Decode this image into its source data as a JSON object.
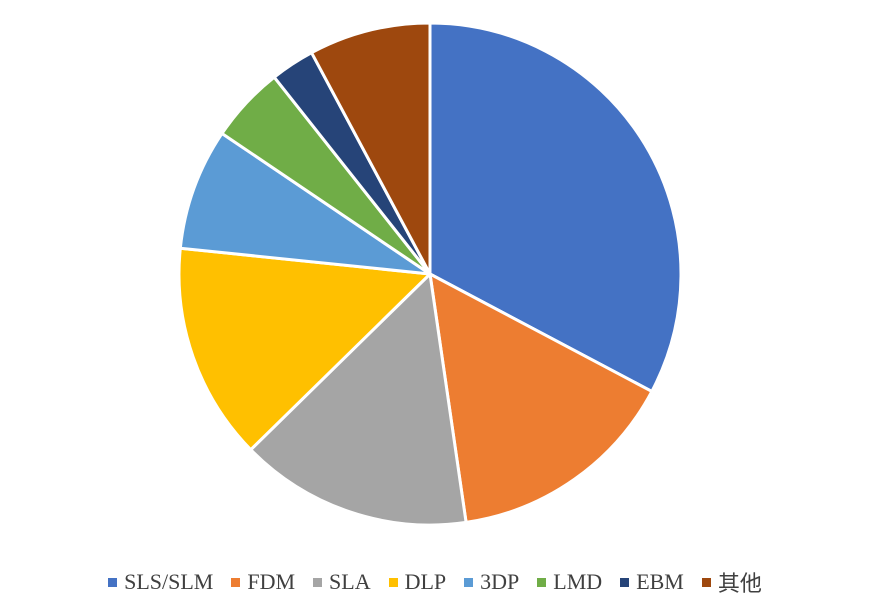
{
  "chart_data": {
    "type": "pie",
    "title": "",
    "categories": [
      "SLS/SLM",
      "FDM",
      "SLA",
      "DLP",
      "3DP",
      "LMD",
      "EBM",
      "其他"
    ],
    "values": [
      33.5,
      15.3,
      15.3,
      14.3,
      8.0,
      5.0,
      2.9,
      8.0
    ],
    "colors": [
      "#4472C4",
      "#ED7D31",
      "#A5A5A5",
      "#FFC000",
      "#5B9BD5",
      "#70AD47",
      "#264478",
      "#9E480E"
    ],
    "start_angle_deg": 0,
    "direction": "clockwise",
    "legend_position": "bottom"
  }
}
